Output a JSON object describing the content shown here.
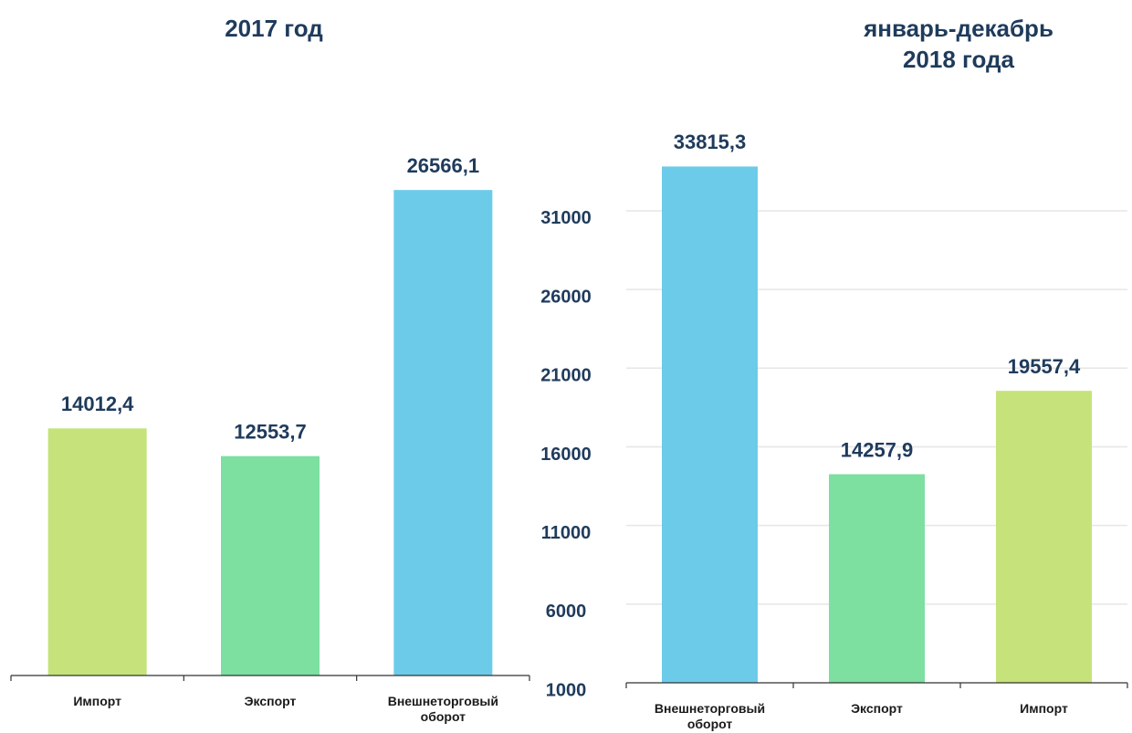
{
  "chart_data": [
    {
      "type": "bar",
      "title": "2017 год",
      "categories": [
        "Импорт",
        "Экспорт",
        "Внешнеторговый оборот"
      ],
      "values": [
        14012.4,
        12553.7,
        26566.1
      ],
      "value_labels": [
        "14012,4",
        "12553,7",
        "26566,1"
      ],
      "colors": [
        "#c5e37a",
        "#7ddfa0",
        "#6ccbe8"
      ],
      "ylim": [
        1000,
        28400
      ]
    },
    {
      "type": "bar",
      "title": "январь-декабрь 2018 года",
      "categories": [
        "Внешнеторговый оборот",
        "Экспорт",
        "Импорт"
      ],
      "values": [
        33815.3,
        14257.9,
        19557.4
      ],
      "value_labels": [
        "33815,3",
        "14257,9",
        "19557,4"
      ],
      "colors": [
        "#6ccbe8",
        "#7ddfa0",
        "#c5e37a"
      ],
      "ylim": [
        1000,
        35000
      ],
      "yticks": [
        1000,
        6000,
        11000,
        16000,
        21000,
        26000,
        31000
      ],
      "grid": true
    }
  ]
}
